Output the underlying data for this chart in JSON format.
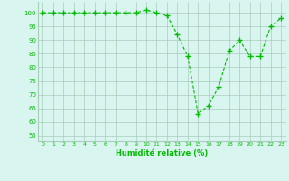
{
  "x": [
    0,
    1,
    2,
    3,
    4,
    5,
    6,
    7,
    8,
    9,
    10,
    11,
    12,
    13,
    14,
    15,
    16,
    17,
    18,
    19,
    20,
    21,
    22,
    23
  ],
  "y": [
    100,
    100,
    100,
    100,
    100,
    100,
    100,
    100,
    100,
    100,
    101,
    100,
    99,
    92,
    84,
    63,
    66,
    73,
    86,
    90,
    84,
    84,
    95,
    98
  ],
  "line_color": "#00bb00",
  "marker": "+",
  "marker_color": "#00bb00",
  "bg_color": "#d8f5f0",
  "grid_color": "#aaccbb",
  "xlabel": "Humidité relative (%)",
  "xlabel_color": "#00bb00",
  "tick_color": "#00bb00",
  "ylabel_ticks": [
    55,
    60,
    65,
    70,
    75,
    80,
    85,
    90,
    95,
    100
  ],
  "ylim": [
    53,
    104
  ],
  "xlim": [
    -0.5,
    23.5
  ],
  "xticks": [
    0,
    1,
    2,
    3,
    4,
    5,
    6,
    7,
    8,
    9,
    10,
    11,
    12,
    13,
    14,
    15,
    16,
    17,
    18,
    19,
    20,
    21,
    22,
    23
  ]
}
